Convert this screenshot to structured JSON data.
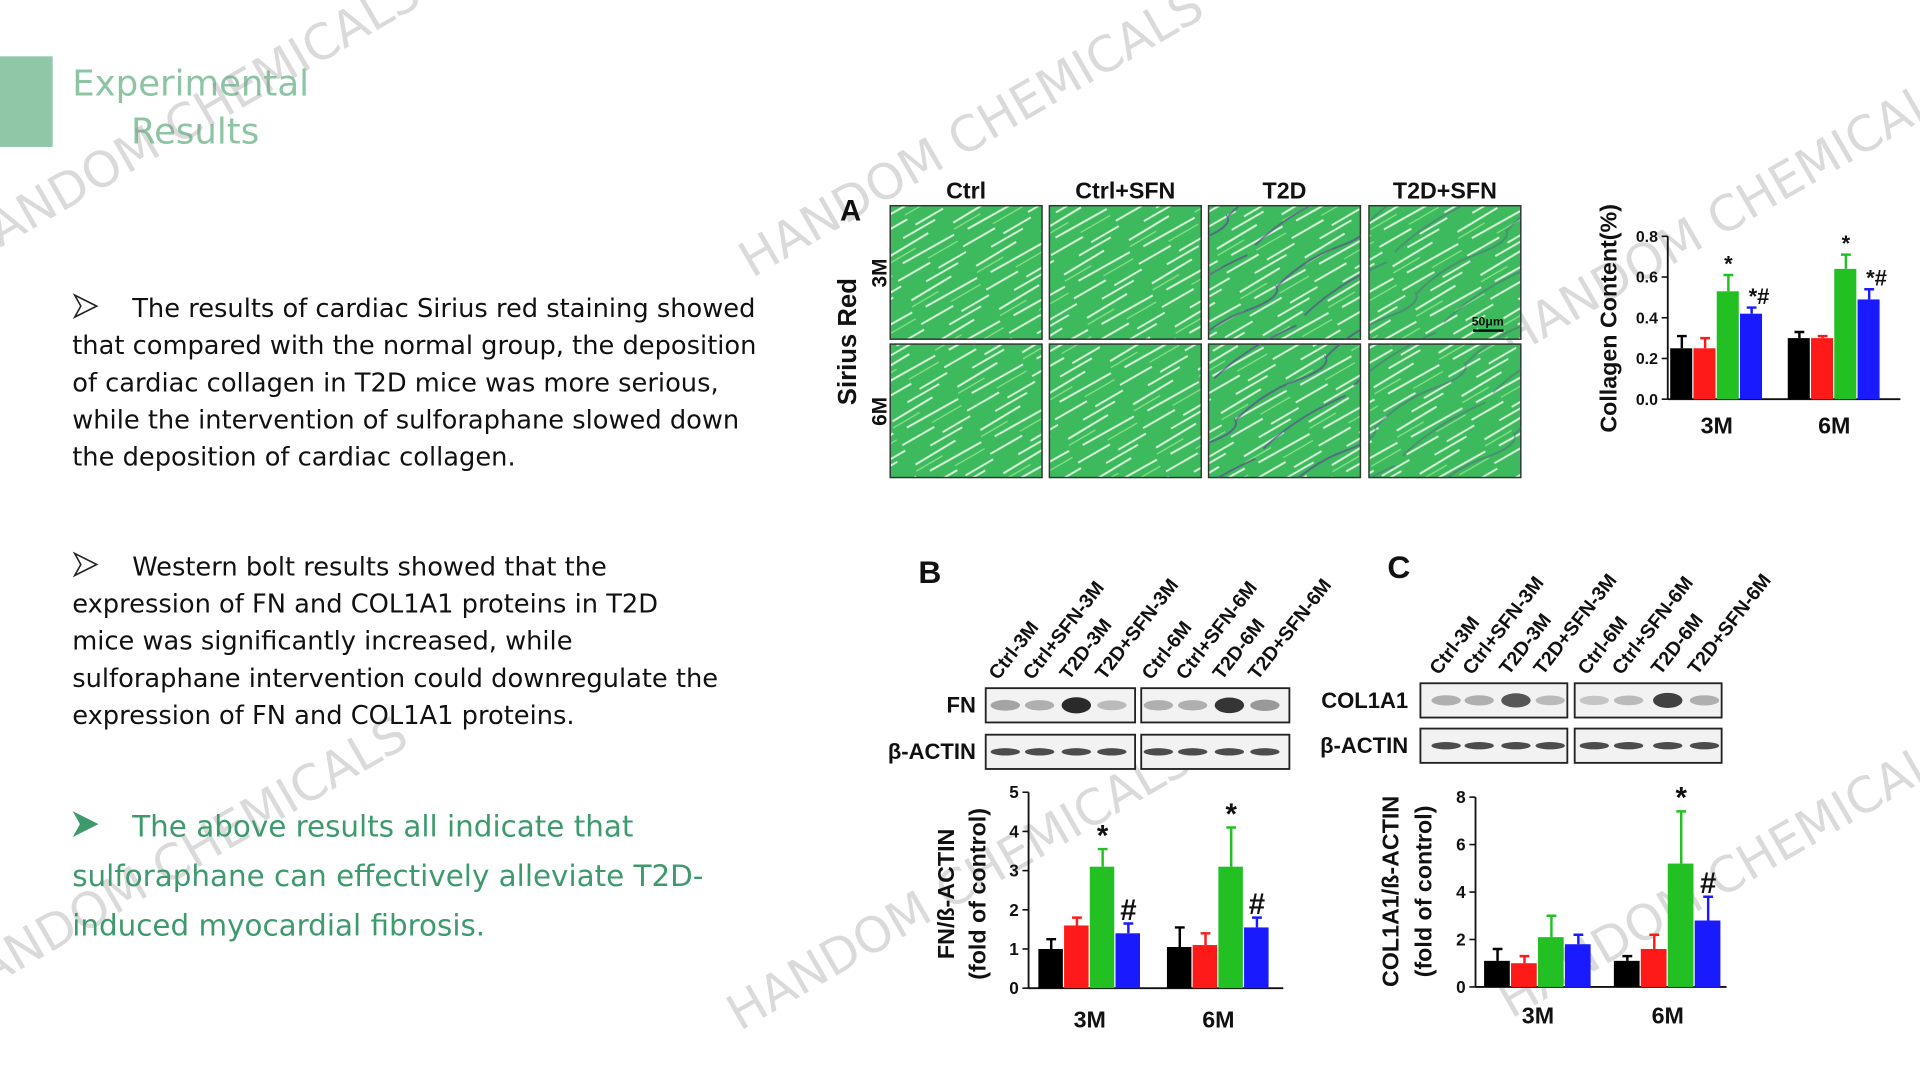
{
  "header": {
    "title_lines": [
      "Experimental",
      "Results"
    ]
  },
  "watermark": "HANDOM CHEMICALS",
  "bullets": [
    {
      "style": "body",
      "lines": [
        "The results of cardiac Sirius red staining showed",
        "that compared with the normal group, the deposition",
        "of cardiac collagen in T2D mice was more serious,",
        "while the intervention of sulforaphane slowed down",
        "the deposition of cardiac collagen."
      ]
    },
    {
      "style": "body",
      "lines": [
        "Western bolt results showed that the",
        "expression of FN and COL1A1 proteins in T2D",
        "mice was significantly increased, while",
        "sulforaphane intervention could downregulate the",
        " expression of FN and COL1A1 proteins."
      ]
    },
    {
      "style": "highlight",
      "lines": [
        "The above results all indicate that",
        "sulforaphane can effectively alleviate T2D-",
        "induced myocardial fibrosis."
      ]
    }
  ],
  "figure": {
    "panel_a": {
      "letter": "A",
      "stain": "Sirius Red",
      "columns": [
        "Ctrl",
        "Ctrl+SFN",
        "T2D",
        "T2D+SFN"
      ],
      "rows": [
        "3M",
        "6M"
      ],
      "scale_bar": "50μm"
    },
    "panel_b": {
      "letter": "B",
      "lanes": [
        "Ctrl-3M",
        "Ctrl+SFN-3M",
        "T2D-3M",
        "T2D+SFN-3M",
        "Ctrl-6M",
        "Ctrl+SFN-6M",
        "T2D-6M",
        "T2D+SFN-6M"
      ],
      "blots": [
        "FN",
        "β-ACTIN"
      ]
    },
    "panel_c": {
      "letter": "C",
      "lanes": [
        "Ctrl-3M",
        "Ctrl+SFN-3M",
        "T2D-3M",
        "T2D+SFN-3M",
        "Ctrl-6M",
        "Ctrl+SFN-6M",
        "T2D-6M",
        "T2D+SFN-6M"
      ],
      "blots": [
        "COL1A1",
        "β-ACTIN"
      ]
    }
  },
  "chart_data": [
    {
      "type": "bar",
      "ylabel_lines": [
        "Collagen Content(%)"
      ],
      "categories": [
        "3M",
        "6M"
      ],
      "ylim": [
        0,
        0.8
      ],
      "yticks": [
        {
          "value": 0,
          "label": "0.0"
        },
        0.2,
        0.4,
        0.6,
        0.8
      ],
      "series": [
        {
          "color": "#000000",
          "values": [
            0.25,
            0.3
          ],
          "errors": [
            0.06,
            0.03
          ],
          "labels": [
            null,
            null
          ]
        },
        {
          "color": "#ff1a1a",
          "values": [
            0.25,
            0.3
          ],
          "errors": [
            0.05,
            0.01
          ],
          "labels": [
            null,
            null
          ]
        },
        {
          "color": "#22c022",
          "values": [
            0.53,
            0.64
          ],
          "errors": [
            0.08,
            0.07
          ],
          "labels": [
            "*",
            "*"
          ]
        },
        {
          "color": "#1a1aff",
          "values": [
            0.42,
            0.49
          ],
          "errors": [
            0.03,
            0.05
          ],
          "labels": [
            "*#",
            "*#"
          ]
        }
      ]
    },
    {
      "type": "bar",
      "ylabel_lines": [
        "FN/ß-ACTIN",
        "(fold of control)"
      ],
      "categories": [
        "3M",
        "6M"
      ],
      "ylim": [
        0,
        5
      ],
      "yticks": [
        0,
        1,
        2,
        3,
        4,
        5
      ],
      "series": [
        {
          "color": "#000000",
          "values": [
            1.0,
            1.05
          ],
          "errors": [
            0.25,
            0.5
          ],
          "labels": [
            null,
            null
          ]
        },
        {
          "color": "#ff1a1a",
          "values": [
            1.6,
            1.1
          ],
          "errors": [
            0.2,
            0.3
          ],
          "labels": [
            null,
            null
          ]
        },
        {
          "color": "#22c022",
          "values": [
            3.1,
            3.1
          ],
          "errors": [
            0.45,
            1.0
          ],
          "labels": [
            "*",
            "*"
          ]
        },
        {
          "color": "#1a1aff",
          "values": [
            1.4,
            1.55
          ],
          "errors": [
            0.25,
            0.25
          ],
          "labels": [
            "#",
            "#"
          ]
        }
      ]
    },
    {
      "type": "bar",
      "ylabel_lines": [
        "COL1A1/ß-ACTIN",
        "(fold of control)"
      ],
      "categories": [
        "3M",
        "6M"
      ],
      "ylim": [
        0,
        8
      ],
      "yticks": [
        0,
        2,
        4,
        6,
        8
      ],
      "series": [
        {
          "color": "#000000",
          "values": [
            1.1,
            1.1
          ],
          "errors": [
            0.5,
            0.2
          ],
          "labels": [
            null,
            null
          ]
        },
        {
          "color": "#ff1a1a",
          "values": [
            1.0,
            1.6
          ],
          "errors": [
            0.3,
            0.6
          ],
          "labels": [
            null,
            null
          ]
        },
        {
          "color": "#22c022",
          "values": [
            2.1,
            5.2
          ],
          "errors": [
            0.9,
            2.2
          ],
          "labels": [
            null,
            "*"
          ]
        },
        {
          "color": "#1a1aff",
          "values": [
            1.8,
            2.8
          ],
          "errors": [
            0.4,
            1.0
          ],
          "labels": [
            null,
            "#"
          ]
        }
      ]
    }
  ]
}
